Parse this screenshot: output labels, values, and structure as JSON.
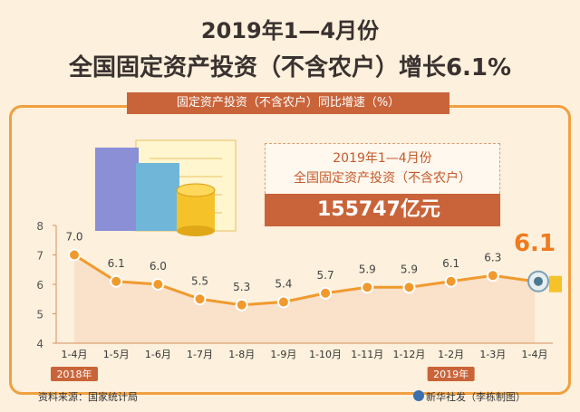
{
  "title_line1": "2019年1—4月份",
  "title_line2": "全国固定资产投资（不含农户）增长6.1%",
  "banner": "固定资产投资（不含农户）同比增速（%）",
  "info": {
    "line1": "2019年1—4月份",
    "line2": "全国固定资产投资（不含农户）",
    "value": "155747亿元"
  },
  "footer": {
    "source": "资料来源：国家统计局",
    "credit": "新华社发（李栋制图）"
  },
  "colors": {
    "line": "#f09a2e",
    "point": "#f09a2e",
    "area": "#f7d7be",
    "highlight": "#f07a1e",
    "tag": "#c9643a"
  },
  "chart_data": {
    "type": "line",
    "categories": [
      "1-4月",
      "1-5月",
      "1-6月",
      "1-7月",
      "1-8月",
      "1-9月",
      "1-10月",
      "1-11月",
      "1-12月",
      "1-2月",
      "1-3月",
      "1-4月"
    ],
    "values": [
      7.0,
      6.1,
      6.0,
      5.5,
      5.3,
      5.4,
      5.7,
      5.9,
      5.9,
      6.1,
      6.3,
      6.1
    ],
    "value_labels": [
      "7.0",
      "6.1",
      "6.0",
      "5.5",
      "5.3",
      "5.4",
      "5.7",
      "5.9",
      "5.9",
      "6.1",
      "6.3",
      "6.1"
    ],
    "ylim": [
      4,
      8
    ],
    "yticks": [
      4,
      5,
      6,
      7,
      8
    ],
    "year_tags": [
      {
        "label": "2018年",
        "index": 0
      },
      {
        "label": "2019年",
        "index": 9
      }
    ],
    "highlight_index": 11,
    "title": "",
    "xlabel": "",
    "ylabel": ""
  }
}
